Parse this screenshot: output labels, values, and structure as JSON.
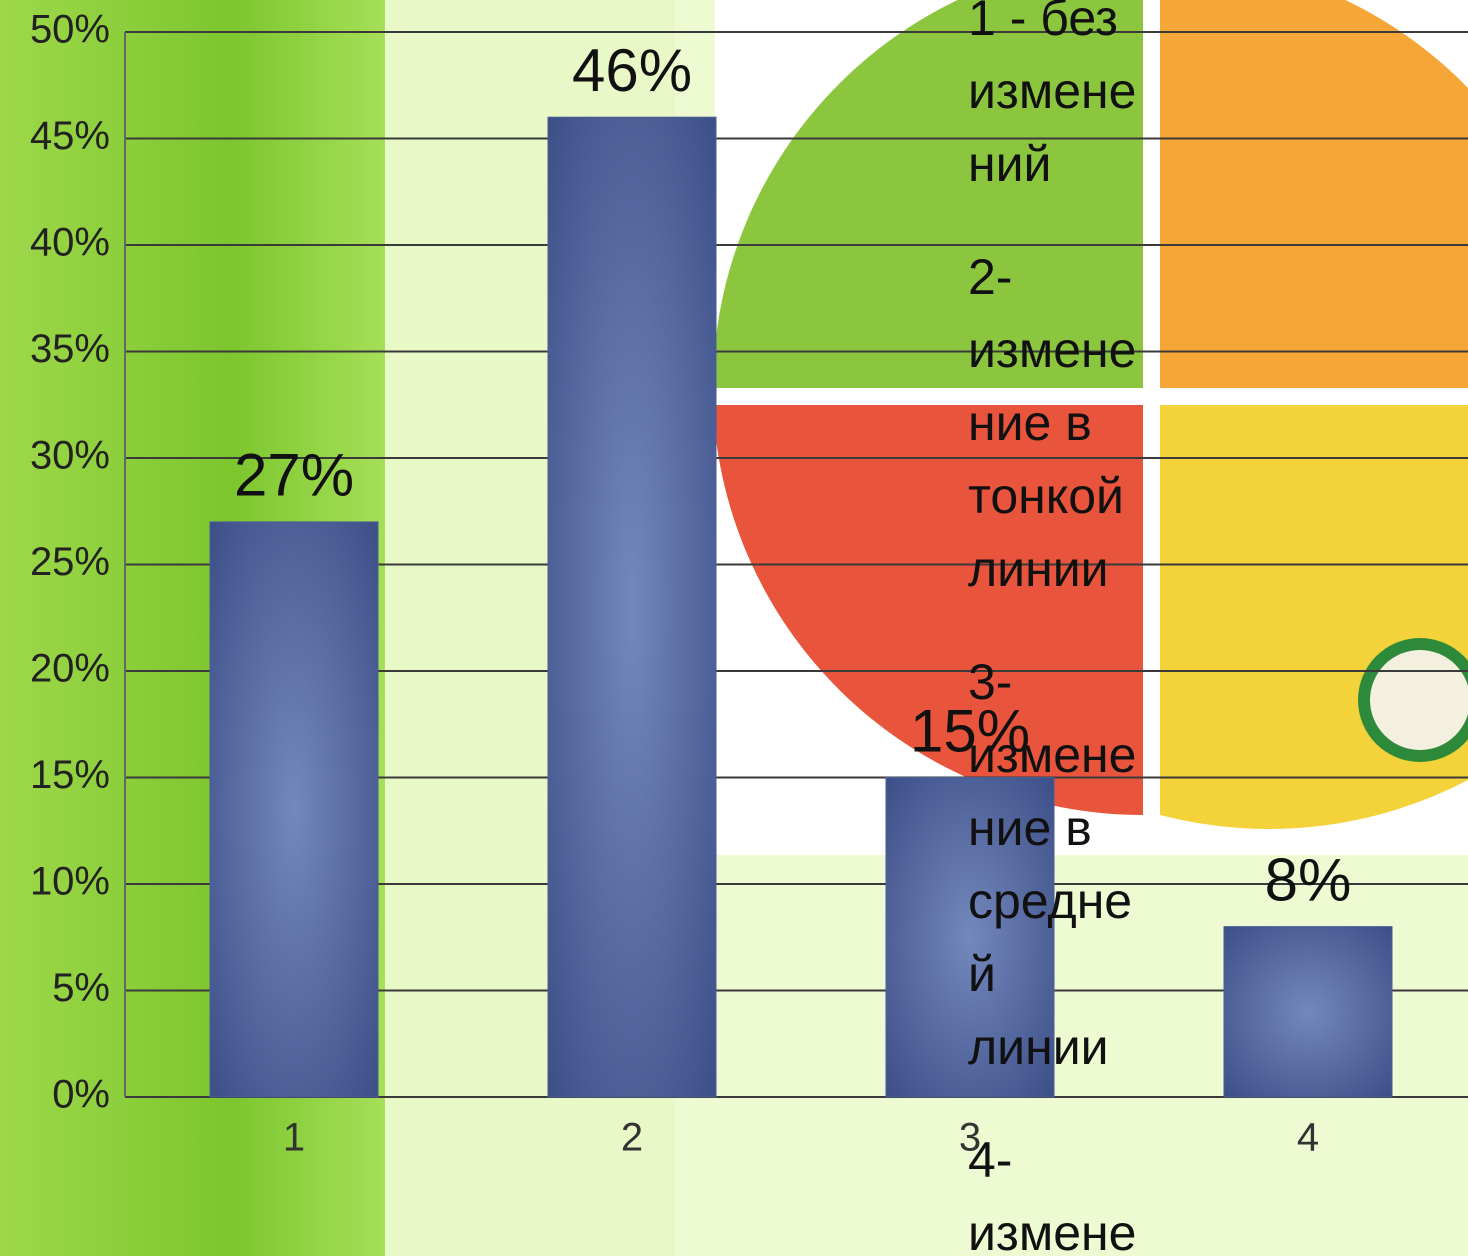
{
  "chart_data": {
    "type": "bar",
    "categories": [
      "1",
      "2",
      "3",
      "4"
    ],
    "values": [
      27,
      46,
      15,
      8
    ],
    "value_labels": [
      "27%",
      "46%",
      "15%",
      "8%"
    ],
    "color": "#4a5d96",
    "ylim": [
      0,
      50
    ],
    "yticks": [
      {
        "value": 0,
        "label": "0%"
      },
      {
        "value": 5,
        "label": "5%"
      },
      {
        "value": 10,
        "label": "10%"
      },
      {
        "value": 15,
        "label": "15%"
      },
      {
        "value": 20,
        "label": "20%"
      },
      {
        "value": 25,
        "label": "25%"
      },
      {
        "value": 30,
        "label": "30%"
      },
      {
        "value": 35,
        "label": "35%"
      },
      {
        "value": 40,
        "label": "40%"
      },
      {
        "value": 45,
        "label": "45%"
      },
      {
        "value": 50,
        "label": "50%"
      }
    ],
    "grid": true,
    "annotations": [
      [
        "1 - без",
        "измене",
        "ний"
      ],
      [
        "2-",
        "измене",
        "ние в",
        "тонкой",
        "линии"
      ],
      [
        "3-",
        "измене",
        "ние в",
        "средне",
        "й",
        "линии"
      ],
      [
        "4-",
        "измене"
      ]
    ]
  }
}
